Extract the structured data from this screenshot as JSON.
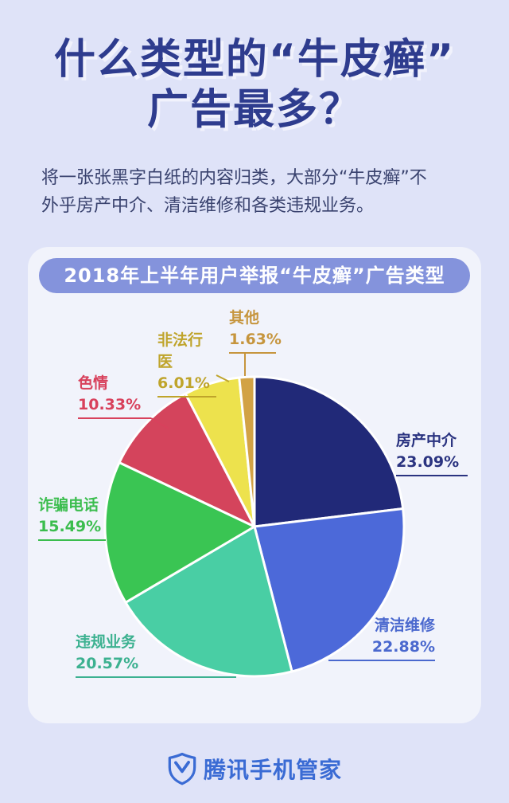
{
  "header": {
    "title_line1": "什么类型的“牛皮癣”",
    "title_line2": "广告最多？",
    "subtitle_line1": "将一张张黑字白纸的内容归类，大部分“牛皮癣”不",
    "subtitle_line2": "外乎房产中介、清洁维修和各类违规业务。"
  },
  "chart_data": {
    "type": "pie",
    "title": "2018年上半年用户举报“牛皮癣”广告类型",
    "unit": "percent",
    "start_angle_deg": 0,
    "direction": "clockwise",
    "legend_position": "around-slices",
    "segments": [
      {
        "label": "房产中介",
        "value": 23.09,
        "display": "23.09%",
        "color": "#212978",
        "label_color": "#2A3380"
      },
      {
        "label": "清洁维修",
        "value": 22.88,
        "display": "22.88%",
        "color": "#4C69D9",
        "label_color": "#4A68CE"
      },
      {
        "label": "违规业务",
        "value": 20.57,
        "display": "20.57%",
        "color": "#49CEA4",
        "label_color": "#3CB190"
      },
      {
        "label": "诈骗电话",
        "value": 15.49,
        "display": "15.49%",
        "color": "#3AC553",
        "label_color": "#3BBD4E"
      },
      {
        "label": "色情",
        "value": 10.33,
        "display": "10.33%",
        "color": "#D4445C",
        "label_color": "#D8415C"
      },
      {
        "label": "非法行医",
        "value": 6.01,
        "display": "6.01%",
        "color": "#EDE24D",
        "label_color": "#BFA42B"
      },
      {
        "label": "其他",
        "value": 1.63,
        "display": "1.63%",
        "color": "#D2A245",
        "label_color": "#C6953D"
      }
    ]
  },
  "footer": {
    "brand": "腾讯手机管家"
  }
}
